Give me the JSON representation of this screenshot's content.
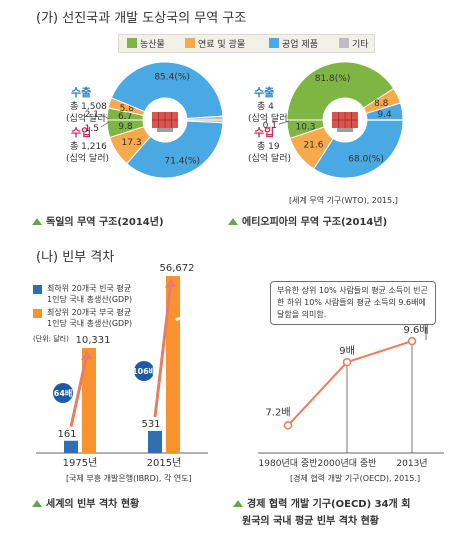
{
  "section_a_title": "(가) 선진국과 개발 도상국의 무역 구조",
  "legend": {
    "items": [
      {
        "label": "농산물",
        "color": "#7fb542"
      },
      {
        "label": "연료 및 광물",
        "color": "#f7a94b"
      },
      {
        "label": "공업 제품",
        "color": "#4aa8e3"
      },
      {
        "label": "기타",
        "color": "#bdbdbd"
      }
    ]
  },
  "germany": {
    "export_label": "수출",
    "export_total": "총 1,508",
    "export_unit": "(십억 달러)",
    "import_label": "수입",
    "import_total": "총 1,216",
    "import_unit": "(십억 달러)",
    "caption": "독일의 무역 구조(2014년)"
  },
  "ethiopia": {
    "export_label": "수출",
    "export_total": "총 4",
    "export_unit": "(십억 달러)",
    "import_label": "수입",
    "import_total": "총 19",
    "import_unit": "(십억 달러)",
    "caption": "에티오피아의 무역 구조(2014년)",
    "source": "[세계 무역 기구(WTO), 2015.]"
  },
  "section_b_title": "(나) 빈부 격차",
  "wealth": {
    "legend_low": [
      "최하위 20개국 빈국 평균",
      "1인당 국내 총생산(GDP)"
    ],
    "legend_high": [
      "최상위 20개국 부국 평균",
      "1인당 국내 총생산(GDP)"
    ],
    "unit": "(단위: 달러)",
    "source": "[국제 부흥 개발은행(IBRD), 각 연도]",
    "caption": "세계의 빈부 격차 현황"
  },
  "oecd": {
    "note": "부유한 상위 10% 사람들의 평균 소득이 빈곤한 하위 10% 사람들의 평균 소득의 9.6배에 달함을 의미함.",
    "source": "[경제 협력 개발 기구(OECD), 2015.]",
    "caption_line1": "경제 협력 개발 기구(OECD) 34개 회",
    "caption_line2": "원국의 국내 평균 빈부 격차 현황"
  },
  "chart_data": [
    {
      "type": "pie",
      "title": "독일의 무역 구조(2014년)",
      "categories": [
        "농산물",
        "연료 및 광물",
        "공업 제품",
        "기타"
      ],
      "series": [
        {
          "name": "수출",
          "values": [
            6.7,
            5.8,
            85.4,
            2.1
          ],
          "labels": [
            "6.7",
            "5.8",
            "85.4(%)",
            "2.1"
          ]
        },
        {
          "name": "수입",
          "values": [
            9.8,
            17.3,
            71.4,
            1.5
          ],
          "labels": [
            "9.8",
            "17.3",
            "71.4(%)",
            "1.5"
          ]
        }
      ]
    },
    {
      "type": "pie",
      "title": "에티오피아의 무역 구조(2014년)",
      "categories": [
        "농산물",
        "연료 및 광물",
        "공업 제품",
        "기타"
      ],
      "series": [
        {
          "name": "수출",
          "values": [
            81.8,
            8.8,
            9.4,
            0.1
          ],
          "labels": [
            "81.8(%)",
            "8.8",
            "9.4",
            "0.1"
          ]
        },
        {
          "name": "수입",
          "values": [
            10.3,
            21.6,
            68.0,
            0.1
          ],
          "labels": [
            "10.3",
            "21.6",
            "68.0(%)",
            "0.1"
          ]
        }
      ]
    },
    {
      "type": "bar",
      "title": "세계의 빈부 격차 현황",
      "ylabel": "(단위: 달러)",
      "categories": [
        "1975년",
        "2015년"
      ],
      "series": [
        {
          "name": "최하위 20개국 빈국 평균 1인당 국내 총생산(GDP)",
          "values": [
            161,
            531
          ],
          "labels": [
            "161",
            "531"
          ],
          "color": "#2f6fb0"
        },
        {
          "name": "최상위 20개국 부국 평균 1인당 국내 총생산(GDP)",
          "values": [
            10331,
            56672
          ],
          "labels": [
            "10,331",
            "56,672"
          ],
          "color": "#f7922f"
        }
      ],
      "annotations": [
        "64배",
        "106배"
      ]
    },
    {
      "type": "line",
      "title": "경제 협력 개발 기구(OECD) 34개 회원국의 국내 평균 빈부 격차 현황",
      "x": [
        "1980년대 중반",
        "2000년대 중반",
        "2013년"
      ],
      "series": [
        {
          "values": [
            7.2,
            9,
            9.6
          ],
          "labels": [
            "7.2배",
            "9배",
            "9.6배"
          ],
          "color": "#f07b5a"
        }
      ]
    }
  ]
}
